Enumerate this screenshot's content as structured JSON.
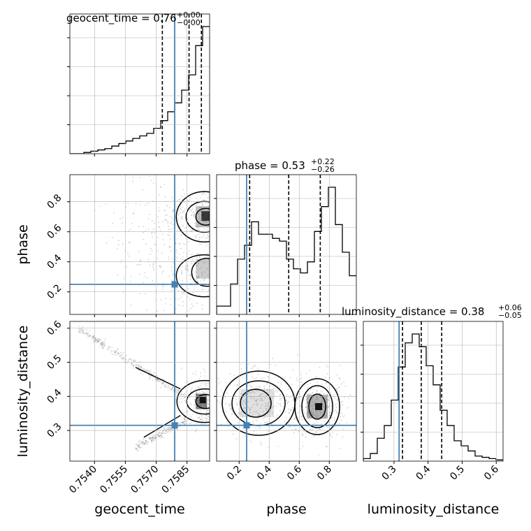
{
  "chart_data": {
    "type": "corner",
    "parameters": [
      {
        "key": "geocent_time",
        "label": "geocent_time",
        "range": [
          0.7528,
          0.7596
        ],
        "ticks": [
          0.754,
          0.7555,
          0.757,
          0.7585
        ],
        "tick_labels": [
          "0.7540",
          "0.7555",
          "0.7570",
          "0.7585"
        ],
        "truth": 0.7579,
        "quantiles": [
          0.7573,
          0.7586,
          0.7592
        ],
        "title_main": "geocent_time = 0.76",
        "title_plus": "+0.00",
        "title_minus": "−0.00"
      },
      {
        "key": "phase",
        "label": "phase",
        "range": [
          0.05,
          0.98
        ],
        "ticks": [
          0.2,
          0.4,
          0.6,
          0.8
        ],
        "tick_labels": [
          "0.2",
          "0.4",
          "0.6",
          "0.8"
        ],
        "truth": 0.25,
        "quantiles": [
          0.27,
          0.53,
          0.74
        ],
        "title_main": "phase = 0.53",
        "title_plus": "+0.22",
        "title_minus": "−0.26"
      },
      {
        "key": "luminosity_distance",
        "label": "luminosity_distance",
        "range": [
          0.21,
          0.62
        ],
        "ticks": [
          0.3,
          0.4,
          0.5,
          0.6
        ],
        "tick_labels": [
          "0.3",
          "0.4",
          "0.5",
          "0.6"
        ],
        "truth": 0.315,
        "quantiles": [
          0.325,
          0.38,
          0.44
        ],
        "title_main": "luminosity_distance = 0.38",
        "title_plus": "+0.06",
        "title_minus": "−0.05"
      }
    ],
    "histograms": [
      {
        "param": "geocent_time",
        "edges_start": 0.7528,
        "bin_width": 0.00034,
        "counts": [
          0,
          0,
          1,
          2,
          3,
          4,
          6,
          8,
          10,
          12,
          14,
          16,
          20,
          26,
          33,
          40,
          50,
          62,
          85,
          100
        ]
      },
      {
        "param": "phase",
        "edges_start": 0.05,
        "bin_width": 0.0465,
        "counts": [
          6,
          6,
          22,
          40,
          50,
          67,
          58,
          58,
          55,
          53,
          40,
          33,
          30,
          38,
          60,
          78,
          92,
          65,
          45,
          28
        ]
      },
      {
        "param": "luminosity_distance",
        "edges_start": 0.21,
        "bin_width": 0.0205,
        "counts": [
          2,
          6,
          18,
          28,
          48,
          74,
          93,
          100,
          90,
          75,
          60,
          40,
          28,
          16,
          12,
          8,
          4,
          3,
          2,
          1
        ]
      }
    ],
    "pairs": [
      {
        "x": "geocent_time",
        "y": "phase"
      },
      {
        "x": "geocent_time",
        "y": "luminosity_distance"
      },
      {
        "x": "phase",
        "y": "luminosity_distance"
      }
    ],
    "grid": true,
    "colors": {
      "truth": "#4682b4",
      "line": "#000000",
      "grid": "#b0b0b0",
      "samples": "#808080"
    }
  }
}
